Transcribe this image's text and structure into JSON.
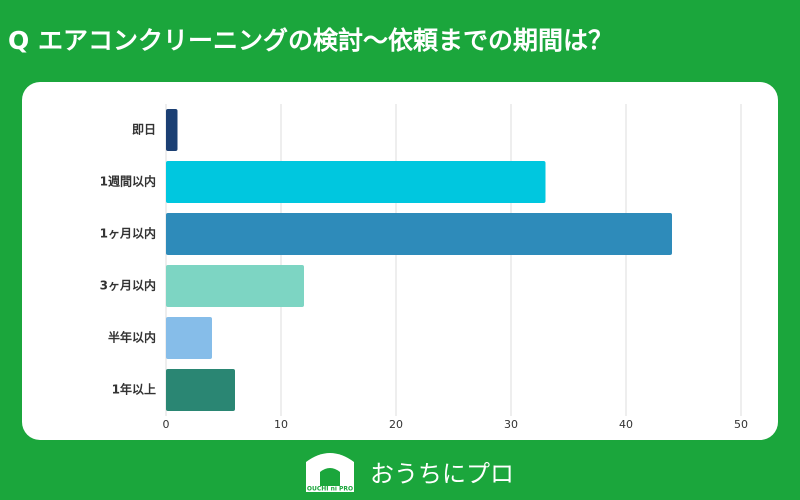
{
  "chart_data": {
    "type": "bar",
    "orientation": "horizontal",
    "title": "Q エアコンクリーニングの検討〜依頼までの期間は？",
    "categories": [
      "即日",
      "1週間以内",
      "1ヶ月以内",
      "3ヶ月以内",
      "半年以内",
      "1年以上"
    ],
    "values": [
      1,
      33,
      44,
      12,
      4,
      6
    ],
    "colors": [
      "#1b3f73",
      "#00c7df",
      "#2e8bba",
      "#7dd5c3",
      "#86bde9",
      "#2a8673"
    ],
    "xlim": [
      0,
      50
    ],
    "xticks": [
      0,
      10,
      20,
      30,
      40,
      50
    ],
    "grid": true
  },
  "logo": {
    "text": "おうちにプロ",
    "mark": "OUCHI ni PRO"
  }
}
